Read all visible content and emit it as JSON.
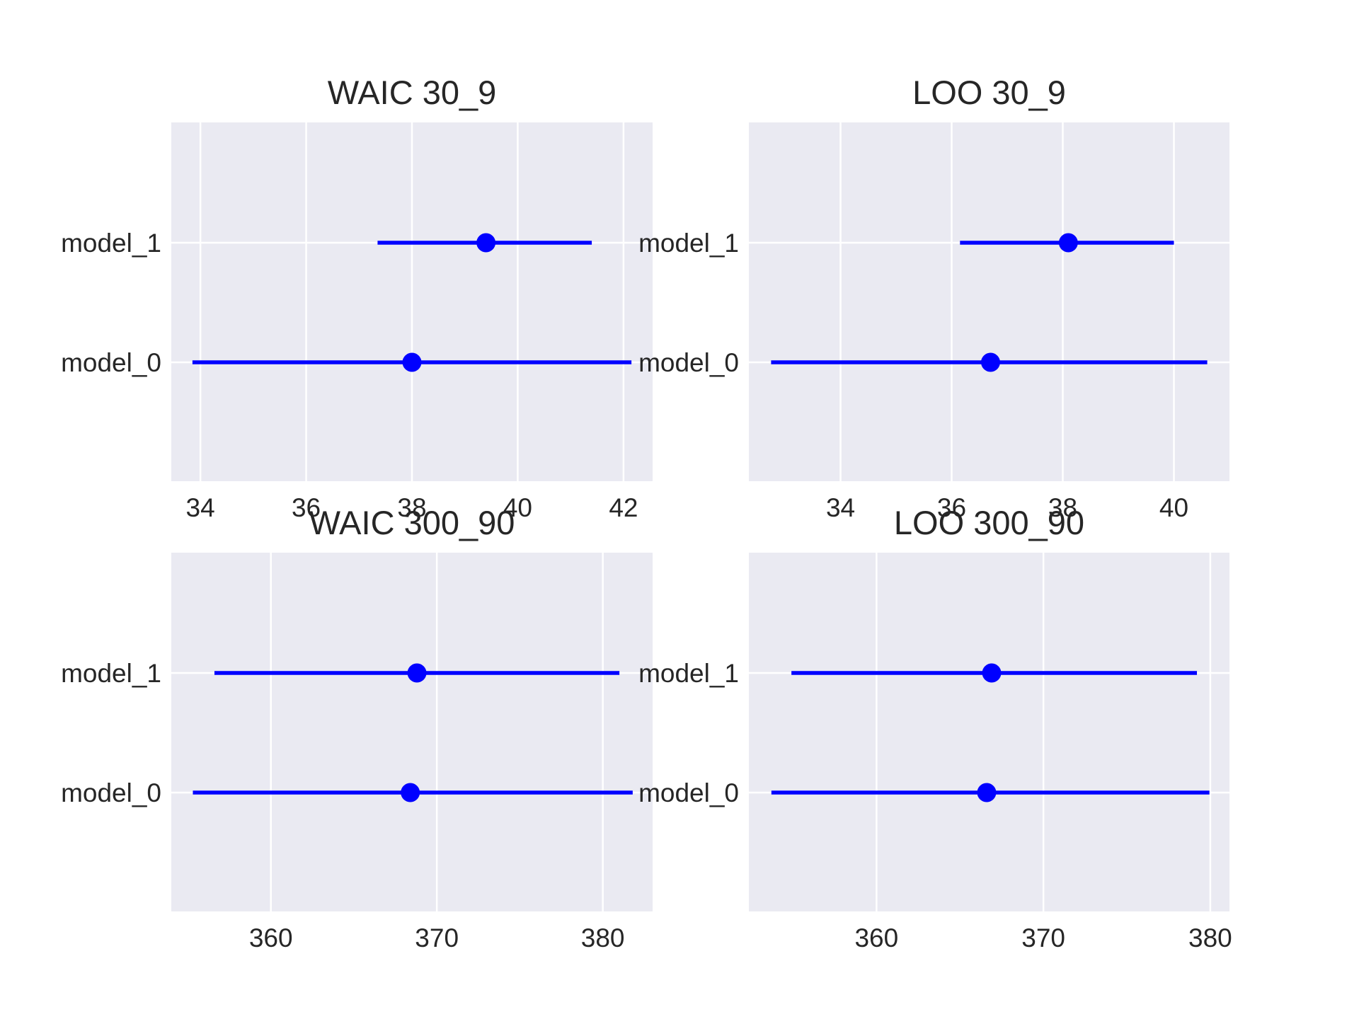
{
  "chart_data": [
    {
      "type": "scatter",
      "title": "WAIC 30_9",
      "categories": [
        "model_0",
        "model_1"
      ],
      "xticks": [
        "34",
        "36",
        "38",
        "40",
        "42"
      ],
      "xtick_values": [
        34,
        36,
        38,
        40,
        42
      ],
      "xlim": [
        33.45,
        42.55
      ],
      "points": [
        {
          "label": "model_0",
          "value": 38.0,
          "low": 33.85,
          "high": 42.15
        },
        {
          "label": "model_1",
          "value": 39.4,
          "low": 37.35,
          "high": 41.4
        }
      ],
      "grid": true,
      "color": "#0000ff"
    },
    {
      "type": "scatter",
      "title": "LOO 30_9",
      "categories": [
        "model_0",
        "model_1"
      ],
      "xticks": [
        "34",
        "36",
        "38",
        "40"
      ],
      "xtick_values": [
        34,
        36,
        38,
        40
      ],
      "xlim": [
        32.35,
        41.0
      ],
      "points": [
        {
          "label": "model_0",
          "value": 36.7,
          "low": 32.75,
          "high": 40.6
        },
        {
          "label": "model_1",
          "value": 38.1,
          "low": 36.15,
          "high": 40.0
        }
      ],
      "grid": true,
      "color": "#0000ff"
    },
    {
      "type": "scatter",
      "title": "WAIC 300_90",
      "categories": [
        "model_0",
        "model_1"
      ],
      "xticks": [
        "360",
        "370",
        "380"
      ],
      "xtick_values": [
        360,
        370,
        380
      ],
      "xlim": [
        354.0,
        383.0
      ],
      "points": [
        {
          "label": "model_0",
          "value": 368.4,
          "low": 355.3,
          "high": 381.8
        },
        {
          "label": "model_1",
          "value": 368.8,
          "low": 356.6,
          "high": 381.0
        }
      ],
      "grid": true,
      "color": "#0000ff"
    },
    {
      "type": "scatter",
      "title": "LOO 300_90",
      "categories": [
        "model_0",
        "model_1"
      ],
      "xticks": [
        "360",
        "370",
        "380"
      ],
      "xtick_values": [
        360,
        370,
        380
      ],
      "xlim": [
        352.35,
        381.15
      ],
      "points": [
        {
          "label": "model_0",
          "value": 366.6,
          "low": 353.7,
          "high": 379.95
        },
        {
          "label": "model_1",
          "value": 366.9,
          "low": 354.9,
          "high": 379.2
        }
      ],
      "grid": true,
      "color": "#0000ff"
    }
  ]
}
